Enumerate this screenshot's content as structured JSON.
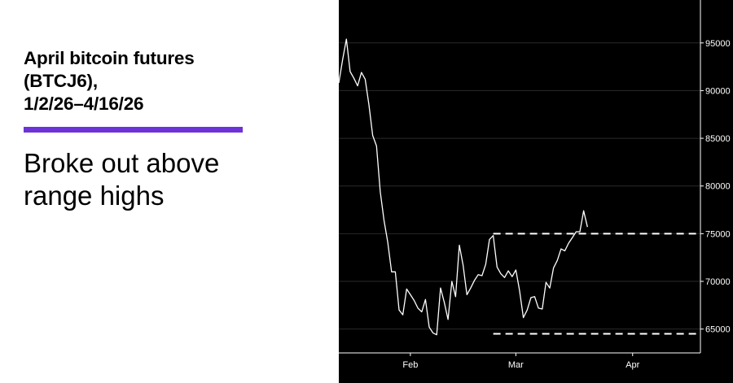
{
  "title_lines": [
    "April bitcoin futures",
    "(BTCJ6),",
    "1/2/26–4/16/26"
  ],
  "subtitle_lines": [
    "Broke out above",
    "range highs"
  ],
  "colors": {
    "accent": "#6e33d6",
    "chart_background": "#000000",
    "line": "#ffffff",
    "grid": "#2a2a2a"
  },
  "chart_data": {
    "type": "line",
    "x_is_date": true,
    "xlim": [
      "2026-01-13",
      "2026-04-19"
    ],
    "ylim": [
      62500,
      99500
    ],
    "y_ticks": [
      65000,
      70000,
      75000,
      80000,
      85000,
      90000,
      95000
    ],
    "x_ticks": [
      {
        "label": "Feb",
        "date": "2026-02-01"
      },
      {
        "label": "Mar",
        "date": "2026-03-01"
      },
      {
        "label": "Apr",
        "date": "2026-04-01"
      }
    ],
    "grid": true,
    "series": [
      {
        "x": [
          "2026-01-13",
          "2026-01-14",
          "2026-01-15",
          "2026-01-16",
          "2026-01-17",
          "2026-01-18",
          "2026-01-19",
          "2026-01-20",
          "2026-01-21",
          "2026-01-22",
          "2026-01-23",
          "2026-01-24",
          "2026-01-25",
          "2026-01-26",
          "2026-01-27",
          "2026-01-28",
          "2026-01-29",
          "2026-01-30",
          "2026-01-31",
          "2026-02-01",
          "2026-02-02",
          "2026-02-03",
          "2026-02-04",
          "2026-02-05",
          "2026-02-06",
          "2026-02-07",
          "2026-02-08",
          "2026-02-09",
          "2026-02-10",
          "2026-02-11",
          "2026-02-12",
          "2026-02-13",
          "2026-02-14",
          "2026-02-15",
          "2026-02-16",
          "2026-02-17",
          "2026-02-18",
          "2026-02-19",
          "2026-02-20",
          "2026-02-21",
          "2026-02-22",
          "2026-02-23",
          "2026-02-24",
          "2026-02-25",
          "2026-02-26",
          "2026-02-27",
          "2026-02-28",
          "2026-03-01",
          "2026-03-02",
          "2026-03-03",
          "2026-03-04",
          "2026-03-05",
          "2026-03-06",
          "2026-03-07",
          "2026-03-08",
          "2026-03-09",
          "2026-03-10",
          "2026-03-11",
          "2026-03-12",
          "2026-03-13",
          "2026-03-14",
          "2026-03-15",
          "2026-03-16",
          "2026-03-17",
          "2026-03-18",
          "2026-03-19",
          "2026-03-20",
          "2026-03-21",
          "2026-03-22",
          "2026-03-23",
          "2026-03-24",
          "2026-03-25",
          "2026-03-26",
          "2026-03-27",
          "2026-03-28",
          "2026-03-29",
          "2026-03-30",
          "2026-03-31",
          "2026-04-01",
          "2026-04-02",
          "2026-04-03",
          "2026-04-04",
          "2026-04-05",
          "2026-04-06",
          "2026-04-07",
          "2026-04-08",
          "2026-04-09",
          "2026-04-10",
          "2026-04-11",
          "2026-04-12",
          "2026-04-13",
          "2026-04-14",
          "2026-04-15",
          "2026-04-16"
        ],
        "y": [
          90800,
          93200,
          95400,
          92000,
          91300,
          90500,
          91900,
          91200,
          88500,
          85300,
          84200,
          79400,
          76400,
          74100,
          71000,
          71000,
          67000,
          66500,
          69200,
          68600,
          68000,
          67200,
          66800,
          68100,
          65200,
          64600,
          64400,
          69300,
          67800,
          66000,
          70000,
          68400,
          73800,
          71700,
          68600,
          69300,
          70100,
          70700,
          70600,
          71800,
          74400,
          74800,
          71500,
          70800,
          70400,
          71100,
          70500,
          71200,
          69000,
          66200,
          67000,
          68300,
          68400,
          67200,
          67100,
          69900,
          69300,
          71400,
          72200,
          73400,
          73200,
          74000,
          74600,
          75200,
          75200,
          77400,
          75700,
          null,
          null,
          null,
          null,
          null,
          null,
          null,
          null,
          null,
          null,
          null,
          null,
          null,
          null,
          null,
          null,
          null,
          null,
          null,
          null,
          null,
          null,
          null,
          null,
          null,
          null,
          null
        ]
      }
    ],
    "reference_lines": [
      {
        "y": 75000,
        "x_start": "2026-02-23",
        "x_end": "2026-04-19",
        "style": "dashed"
      },
      {
        "y": 64500,
        "x_start": "2026-02-23",
        "x_end": "2026-04-19",
        "style": "dashed"
      }
    ]
  }
}
